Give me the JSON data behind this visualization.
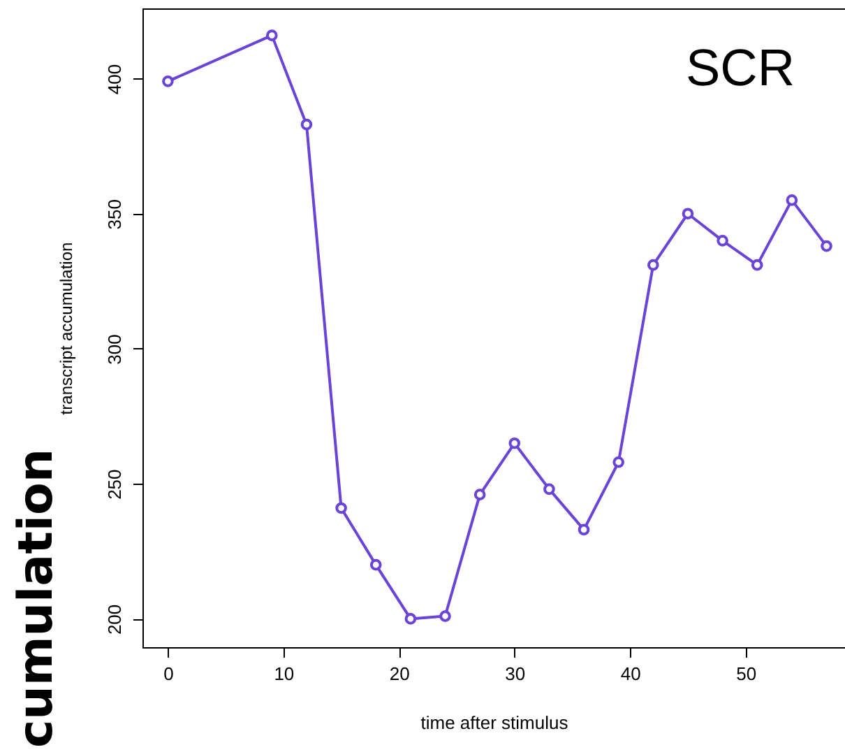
{
  "chart_data": {
    "type": "line",
    "title": "SCR",
    "xlabel": "time after stimulus",
    "ylabel": "transcript accumulation",
    "annotations": [
      "cumulation"
    ],
    "x": [
      0,
      9,
      12,
      15,
      18,
      21,
      24,
      27,
      30,
      33,
      36,
      39,
      42,
      45,
      48,
      51,
      54,
      57
    ],
    "series": [
      {
        "color": "#6a44d6",
        "values": [
          399,
          416,
          383,
          241,
          220,
          200,
          201,
          246,
          265,
          248,
          233,
          258,
          331,
          350,
          340,
          331,
          355,
          338
        ]
      }
    ],
    "xlim": [
      -2.2,
      58.6
    ],
    "xticks": [
      0,
      10,
      20,
      30,
      40,
      50
    ],
    "ylim": [
      189.5,
      426
    ],
    "yticks": [
      200,
      250,
      300,
      350,
      400
    ],
    "grid": false,
    "marker": "circle",
    "line_style": "solid"
  }
}
